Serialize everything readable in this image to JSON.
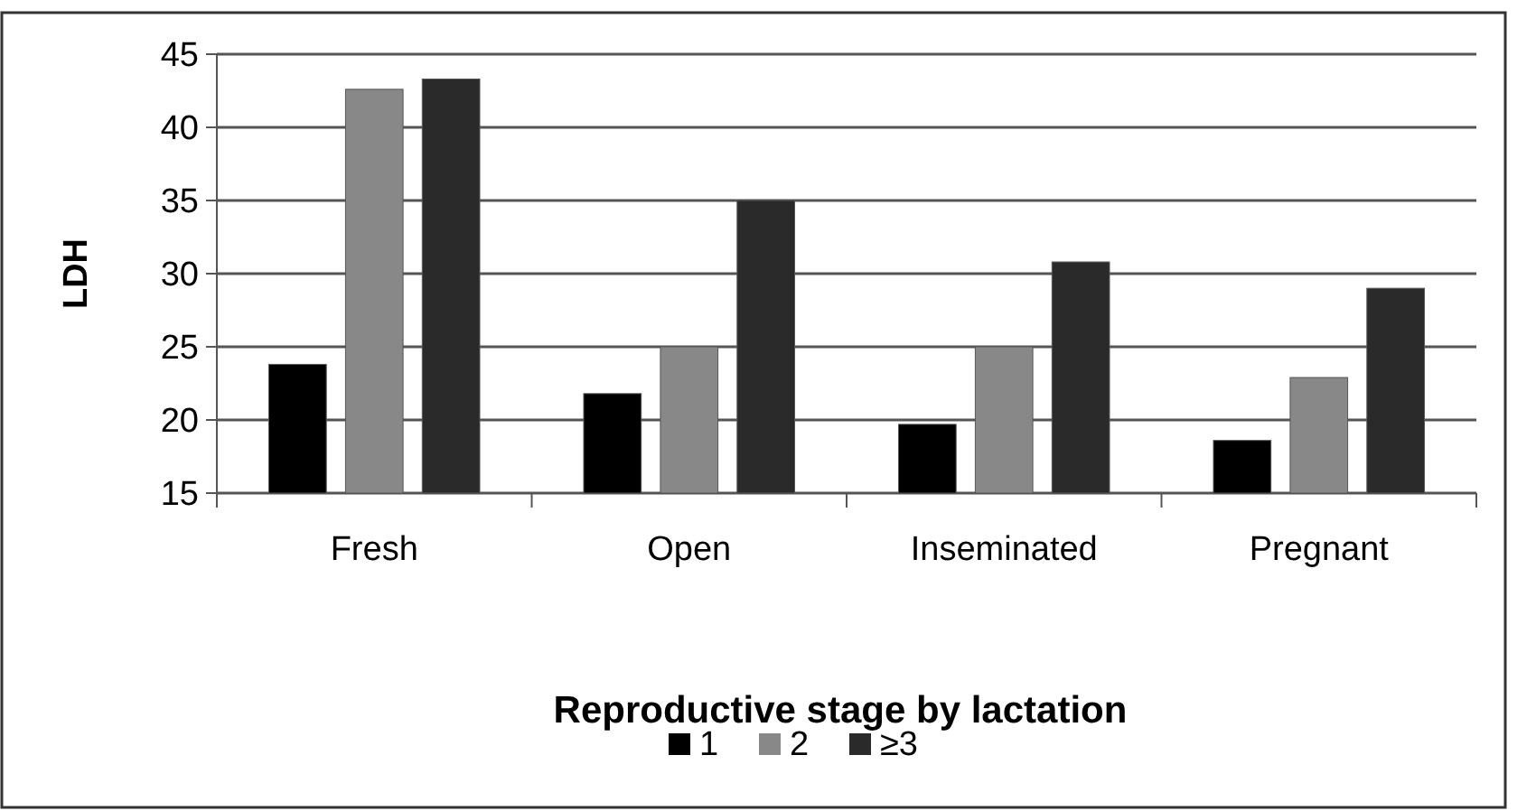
{
  "chart_data": {
    "type": "bar",
    "ylabel": "LDH",
    "legend_title": "Reproductive stage by lactation",
    "legend": "bottom",
    "grid": "y",
    "categories": [
      "Fresh",
      "Open",
      "Inseminated",
      "Pregnant"
    ],
    "series": [
      {
        "name": "1",
        "color": "#000000",
        "values": [
          23.8,
          21.8,
          19.7,
          18.6
        ]
      },
      {
        "name": "2",
        "color": "#888888",
        "values": [
          42.6,
          25,
          25,
          22.9
        ]
      },
      {
        "name": "≥3",
        "color": "#2a2a2a",
        "values": [
          43.3,
          35,
          30.8,
          29
        ]
      }
    ],
    "ylim": [
      15,
      45
    ],
    "yticks": [
      15,
      20,
      25,
      30,
      35,
      40,
      45
    ]
  }
}
